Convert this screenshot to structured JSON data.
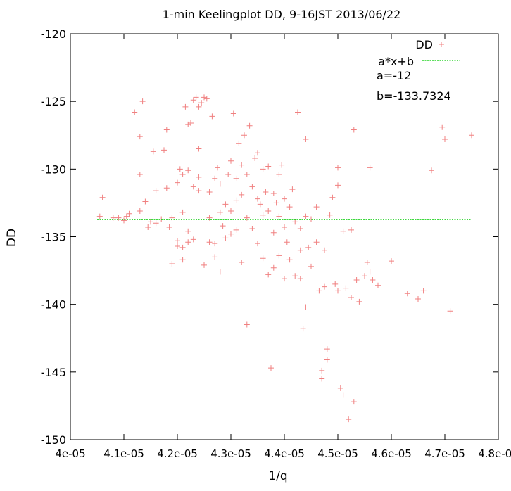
{
  "chart_data": {
    "type": "scatter",
    "title": "1-min Keelingplot DD, 9-16JST 2013/06/22",
    "xlabel": "1/q",
    "ylabel": "DD",
    "xlim": [
      4e-05,
      4.8e-05
    ],
    "ylim": [
      -150,
      -120
    ],
    "xticks": [
      "4e-05",
      "4.1e-05",
      "4.2e-05",
      "4.3e-05",
      "4.4e-05",
      "4.5e-05",
      "4.6e-05",
      "4.7e-05",
      "4.8e-05"
    ],
    "yticks": [
      "-120",
      "-125",
      "-130",
      "-135",
      "-140",
      "-145",
      "-150"
    ],
    "xtick_values": [
      4e-05,
      4.1e-05,
      4.2e-05,
      4.3e-05,
      4.4e-05,
      4.5e-05,
      4.6e-05,
      4.7e-05,
      4.8e-05
    ],
    "ytick_values": [
      -120,
      -125,
      -130,
      -135,
      -140,
      -145,
      -150
    ],
    "grid": false,
    "legend_position": "top-right",
    "series": [
      {
        "name": "DD",
        "kind": "points",
        "marker": "+",
        "color": "#f08080",
        "points": [
          [
            4.055e-05,
            -133.5
          ],
          [
            4.06e-05,
            -132.1
          ],
          [
            4.08e-05,
            -133.6
          ],
          [
            4.09e-05,
            -133.6
          ],
          [
            4.1e-05,
            -133.8
          ],
          [
            4.105e-05,
            -133.5
          ],
          [
            4.11e-05,
            -133.3
          ],
          [
            4.12e-05,
            -125.8
          ],
          [
            4.13e-05,
            -127.6
          ],
          [
            4.13e-05,
            -130.4
          ],
          [
            4.135e-05,
            -125.0
          ],
          [
            4.13e-05,
            -133.1
          ],
          [
            4.14e-05,
            -132.4
          ],
          [
            4.145e-05,
            -134.3
          ],
          [
            4.15e-05,
            -133.9
          ],
          [
            4.155e-05,
            -128.7
          ],
          [
            4.16e-05,
            -131.6
          ],
          [
            4.16e-05,
            -134.0
          ],
          [
            4.17e-05,
            -133.7
          ],
          [
            4.175e-05,
            -128.6
          ],
          [
            4.18e-05,
            -127.1
          ],
          [
            4.18e-05,
            -131.4
          ],
          [
            4.185e-05,
            -134.3
          ],
          [
            4.19e-05,
            -137.0
          ],
          [
            4.19e-05,
            -133.6
          ],
          [
            4.2e-05,
            -131.0
          ],
          [
            4.2e-05,
            -135.3
          ],
          [
            4.2e-05,
            -135.7
          ],
          [
            4.205e-05,
            -130.0
          ],
          [
            4.21e-05,
            -130.4
          ],
          [
            4.21e-05,
            -133.2
          ],
          [
            4.21e-05,
            -135.8
          ],
          [
            4.21e-05,
            -136.7
          ],
          [
            4.215e-05,
            -125.4
          ],
          [
            4.22e-05,
            -126.7
          ],
          [
            4.22e-05,
            -130.1
          ],
          [
            4.22e-05,
            -134.6
          ],
          [
            4.22e-05,
            -135.4
          ],
          [
            4.225e-05,
            -126.6
          ],
          [
            4.23e-05,
            -124.9
          ],
          [
            4.23e-05,
            -131.3
          ],
          [
            4.23e-05,
            -135.2
          ],
          [
            4.235e-05,
            -124.7
          ],
          [
            4.24e-05,
            -125.4
          ],
          [
            4.24e-05,
            -128.5
          ],
          [
            4.24e-05,
            -130.6
          ],
          [
            4.24e-05,
            -131.6
          ],
          [
            4.245e-05,
            -125.1
          ],
          [
            4.25e-05,
            -124.7
          ],
          [
            4.25e-05,
            -137.1
          ],
          [
            4.255e-05,
            -124.8
          ],
          [
            4.26e-05,
            -131.7
          ],
          [
            4.26e-05,
            -133.6
          ],
          [
            4.26e-05,
            -135.4
          ],
          [
            4.265e-05,
            -126.1
          ],
          [
            4.27e-05,
            -130.7
          ],
          [
            4.27e-05,
            -135.5
          ],
          [
            4.27e-05,
            -136.5
          ],
          [
            4.275e-05,
            -129.9
          ],
          [
            4.28e-05,
            -133.2
          ],
          [
            4.28e-05,
            -137.6
          ],
          [
            4.28e-05,
            -131.1
          ],
          [
            4.285e-05,
            -134.2
          ],
          [
            4.29e-05,
            -132.6
          ],
          [
            4.29e-05,
            -135.1
          ],
          [
            4.295e-05,
            -130.4
          ],
          [
            4.3e-05,
            -133.1
          ],
          [
            4.3e-05,
            -134.8
          ],
          [
            4.3e-05,
            -129.4
          ],
          [
            4.305e-05,
            -125.9
          ],
          [
            4.31e-05,
            -130.7
          ],
          [
            4.31e-05,
            -132.3
          ],
          [
            4.31e-05,
            -134.5
          ],
          [
            4.315e-05,
            -128.1
          ],
          [
            4.32e-05,
            -129.7
          ],
          [
            4.32e-05,
            -131.9
          ],
          [
            4.32e-05,
            -136.9
          ],
          [
            4.325e-05,
            -127.5
          ],
          [
            4.33e-05,
            -130.4
          ],
          [
            4.33e-05,
            -133.6
          ],
          [
            4.33e-05,
            -141.5
          ],
          [
            4.335e-05,
            -126.8
          ],
          [
            4.34e-05,
            -131.3
          ],
          [
            4.34e-05,
            -134.4
          ],
          [
            4.345e-05,
            -129.2
          ],
          [
            4.35e-05,
            -128.8
          ],
          [
            4.35e-05,
            -132.2
          ],
          [
            4.35e-05,
            -135.5
          ],
          [
            4.355e-05,
            -132.6
          ],
          [
            4.36e-05,
            -130.0
          ],
          [
            4.36e-05,
            -133.4
          ],
          [
            4.36e-05,
            -136.6
          ],
          [
            4.365e-05,
            -131.7
          ],
          [
            4.37e-05,
            -129.8
          ],
          [
            4.37e-05,
            -133.1
          ],
          [
            4.37e-05,
            -137.8
          ],
          [
            4.375e-05,
            -144.7
          ],
          [
            4.38e-05,
            -131.8
          ],
          [
            4.38e-05,
            -134.7
          ],
          [
            4.38e-05,
            -137.3
          ],
          [
            4.385e-05,
            -132.5
          ],
          [
            4.39e-05,
            -130.4
          ],
          [
            4.39e-05,
            -133.5
          ],
          [
            4.39e-05,
            -136.4
          ],
          [
            4.395e-05,
            -129.7
          ],
          [
            4.4e-05,
            -132.2
          ],
          [
            4.4e-05,
            -134.3
          ],
          [
            4.4e-05,
            -138.1
          ],
          [
            4.405e-05,
            -135.4
          ],
          [
            4.41e-05,
            -132.8
          ],
          [
            4.41e-05,
            -136.7
          ],
          [
            4.415e-05,
            -131.5
          ],
          [
            4.42e-05,
            -133.9
          ],
          [
            4.42e-05,
            -137.9
          ],
          [
            4.425e-05,
            -125.8
          ],
          [
            4.43e-05,
            -134.4
          ],
          [
            4.43e-05,
            -136.0
          ],
          [
            4.43e-05,
            -138.1
          ],
          [
            4.435e-05,
            -141.8
          ],
          [
            4.44e-05,
            -127.8
          ],
          [
            4.44e-05,
            -133.5
          ],
          [
            4.44e-05,
            -140.2
          ],
          [
            4.445e-05,
            -135.8
          ],
          [
            4.45e-05,
            -133.7
          ],
          [
            4.45e-05,
            -137.2
          ],
          [
            4.46e-05,
            -135.4
          ],
          [
            4.46e-05,
            -132.8
          ],
          [
            4.465e-05,
            -139.0
          ],
          [
            4.47e-05,
            -144.9
          ],
          [
            4.47e-05,
            -145.5
          ],
          [
            4.475e-05,
            -136.0
          ],
          [
            4.475e-05,
            -138.7
          ],
          [
            4.48e-05,
            -143.3
          ],
          [
            4.48e-05,
            -144.1
          ],
          [
            4.485e-05,
            -133.4
          ],
          [
            4.49e-05,
            -132.1
          ],
          [
            4.495e-05,
            -138.5
          ],
          [
            4.5e-05,
            -129.9
          ],
          [
            4.5e-05,
            -131.2
          ],
          [
            4.5e-05,
            -139.0
          ],
          [
            4.505e-05,
            -146.2
          ],
          [
            4.51e-05,
            -134.6
          ],
          [
            4.51e-05,
            -146.7
          ],
          [
            4.515e-05,
            -138.8
          ],
          [
            4.52e-05,
            -148.5
          ],
          [
            4.525e-05,
            -139.5
          ],
          [
            4.525e-05,
            -134.5
          ],
          [
            4.53e-05,
            -127.1
          ],
          [
            4.53e-05,
            -147.2
          ],
          [
            4.535e-05,
            -138.2
          ],
          [
            4.54e-05,
            -139.8
          ],
          [
            4.55e-05,
            -137.9
          ],
          [
            4.555e-05,
            -136.9
          ],
          [
            4.56e-05,
            -137.6
          ],
          [
            4.56e-05,
            -129.9
          ],
          [
            4.565e-05,
            -138.2
          ],
          [
            4.575e-05,
            -138.6
          ],
          [
            4.6e-05,
            -136.8
          ],
          [
            4.63e-05,
            -139.2
          ],
          [
            4.65e-05,
            -139.6
          ],
          [
            4.66e-05,
            -139.0
          ],
          [
            4.675e-05,
            -130.1
          ],
          [
            4.695e-05,
            -126.9
          ],
          [
            4.7e-05,
            -127.8
          ],
          [
            4.71e-05,
            -140.5
          ],
          [
            4.75e-05,
            -127.5
          ]
        ]
      },
      {
        "name": "a*x+b",
        "kind": "line",
        "color": "#00cc00",
        "a": -12,
        "b": -133.7324,
        "x_range": [
          4.05e-05,
          4.75e-05
        ]
      }
    ],
    "annotations": [
      "a=-12",
      "b=-133.7324"
    ]
  }
}
